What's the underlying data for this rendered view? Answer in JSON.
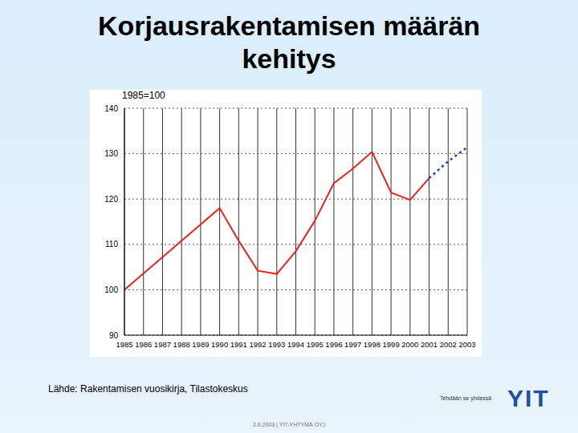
{
  "title": "Korjausrakentamisen määrän kehitys",
  "source": "Lähde: Rakentamisen vuosikirja, Tilastokeskus",
  "slogan": "Tehdään se yhdessä",
  "logo": "YIT",
  "footer": "3.6.2003 | YIT-YHTYMÄ OYJ",
  "chart_data": {
    "type": "line",
    "subtitle": "1985=100",
    "categories": [
      "1985",
      "1986",
      "1987",
      "1988",
      "1989",
      "1990",
      "1991",
      "1992",
      "1993",
      "1994",
      "1995",
      "1996",
      "1997",
      "1998",
      "1999",
      "2000",
      "2001",
      "2002",
      "2003"
    ],
    "series": [
      {
        "color": "#e8231f",
        "line_style": "solid",
        "marker": "none",
        "values": [
          100,
          103.6,
          107.2,
          110.8,
          114.4,
          118,
          110.8,
          104.2,
          103.5,
          108.5,
          115.2,
          123.5,
          126.7,
          130.4,
          121.4,
          119.8,
          124.6,
          null,
          null
        ]
      },
      {
        "color": "#1f3f9f",
        "line_style": "dotted",
        "marker": "none",
        "values": [
          null,
          null,
          null,
          null,
          null,
          null,
          null,
          null,
          null,
          null,
          null,
          null,
          null,
          null,
          null,
          null,
          124.6,
          128.3,
          131.4
        ]
      }
    ],
    "ylim": [
      90,
      140
    ],
    "yticks": [
      90,
      100,
      110,
      120,
      130,
      140
    ],
    "grid": true
  }
}
